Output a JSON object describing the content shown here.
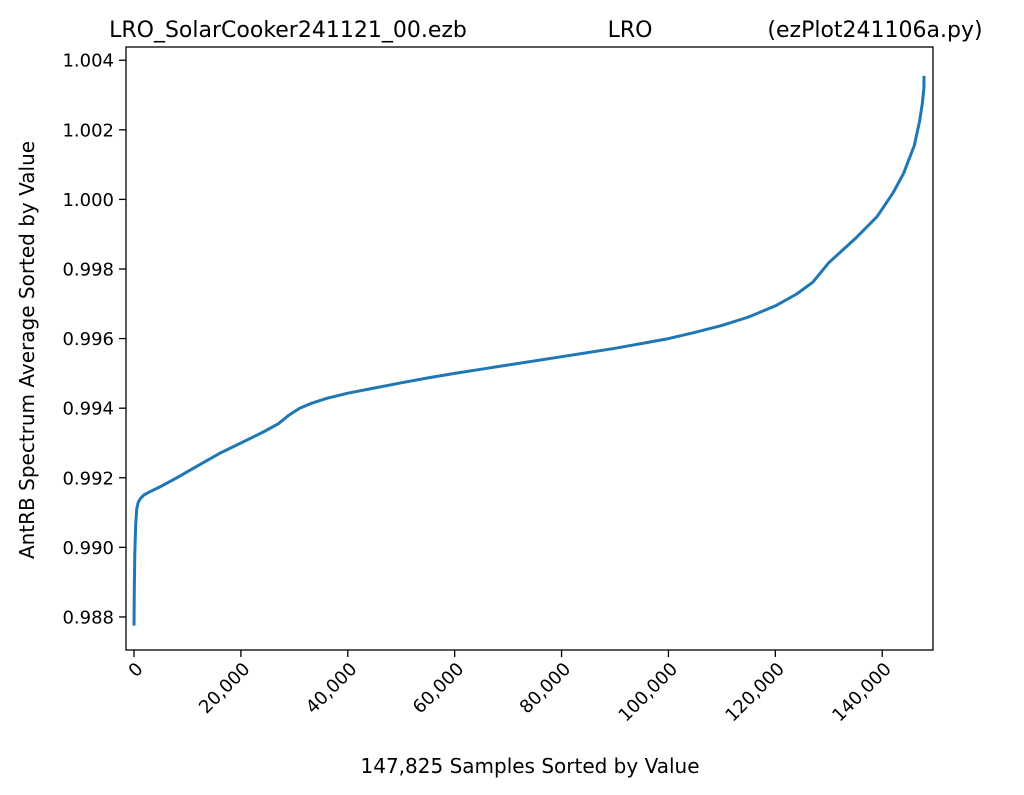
{
  "chart_data": {
    "type": "line",
    "title_parts": [
      "LRO_SolarCooker241121_00.ezb",
      "LRO",
      "(ezPlot241106a.py)"
    ],
    "xlabel": "147,825 Samples Sorted by Value",
    "ylabel": "AntRB Spectrum Average Sorted by Value",
    "xlim": [
      -1500,
      149500
    ],
    "ylim": [
      0.98705,
      1.00438
    ],
    "x_ticks": [
      0,
      20000,
      40000,
      60000,
      80000,
      100000,
      120000,
      140000
    ],
    "x_tick_labels": [
      "0",
      "20,000",
      "40,000",
      "60,000",
      "80,000",
      "100,000",
      "120,000",
      "140,000"
    ],
    "y_ticks": [
      0.988,
      0.99,
      0.992,
      0.994,
      0.996,
      0.998,
      1.0,
      1.002,
      1.004
    ],
    "y_tick_labels": [
      "0.988",
      "0.990",
      "0.992",
      "0.994",
      "0.996",
      "0.998",
      "1.000",
      "1.002",
      "1.004"
    ],
    "grid": false,
    "series": [
      {
        "color": "#1f77b4",
        "x": [
          0,
          50,
          150,
          300,
          500,
          800,
          1200,
          1800,
          3000,
          5000,
          8000,
          12000,
          16000,
          20000,
          24000,
          27000,
          29000,
          31000,
          33000,
          36000,
          40000,
          45000,
          50000,
          55000,
          60000,
          65000,
          70000,
          75000,
          80000,
          85000,
          90000,
          95000,
          100000,
          105000,
          110000,
          115000,
          120000,
          124000,
          127000,
          130000,
          135000,
          139000,
          142000,
          144000,
          146000,
          147000,
          147500,
          147800,
          147825
        ],
        "y": [
          0.98775,
          0.9888,
          0.9898,
          0.9906,
          0.9911,
          0.9913,
          0.9914,
          0.9915,
          0.9916,
          0.99175,
          0.992,
          0.99235,
          0.9927,
          0.993,
          0.9933,
          0.99355,
          0.9938,
          0.994,
          0.99413,
          0.99428,
          0.99443,
          0.99458,
          0.99473,
          0.99487,
          0.995,
          0.99512,
          0.99524,
          0.99536,
          0.99548,
          0.9956,
          0.99572,
          0.99586,
          0.996,
          0.99618,
          0.99638,
          0.99662,
          0.99694,
          0.99728,
          0.99762,
          0.99818,
          0.99888,
          0.9995,
          1.00018,
          1.00075,
          1.00155,
          1.00225,
          1.00275,
          1.0032,
          1.00355
        ]
      }
    ]
  }
}
